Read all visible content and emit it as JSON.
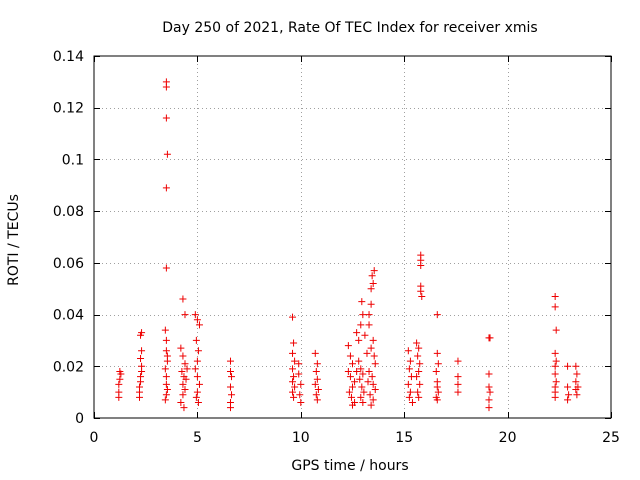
{
  "chart_data": {
    "type": "scatter",
    "title": "Day 250 of 2021, Rate Of TEC Index for receiver xmis",
    "xlabel": "GPS time / hours",
    "ylabel": "ROTI / TECUs",
    "xlim": [
      0,
      25
    ],
    "ylim": [
      0,
      0.14
    ],
    "xticks": [
      0,
      5,
      10,
      15,
      20,
      25
    ],
    "yticks": [
      0,
      0.02,
      0.04,
      0.06,
      0.08,
      0.1,
      0.12,
      0.14
    ],
    "xtick_labels": [
      "0",
      "5",
      "10",
      "15",
      "20",
      "25"
    ],
    "ytick_labels": [
      "0",
      "0.02",
      "0.04",
      "0.06",
      "0.08",
      "0.1",
      "0.12",
      "0.14"
    ],
    "grid": true,
    "marker": "+",
    "color": "#ee0000",
    "series": [
      {
        "points": [
          [
            1.2,
            0.008
          ],
          [
            1.2,
            0.01
          ],
          [
            1.2,
            0.013
          ],
          [
            1.25,
            0.015
          ],
          [
            1.25,
            0.018
          ],
          [
            1.3,
            0.017
          ],
          [
            2.2,
            0.008
          ],
          [
            2.2,
            0.01
          ],
          [
            2.2,
            0.012
          ],
          [
            2.25,
            0.014
          ],
          [
            2.25,
            0.016
          ],
          [
            2.3,
            0.018
          ],
          [
            2.3,
            0.02
          ],
          [
            2.25,
            0.023
          ],
          [
            2.3,
            0.026
          ],
          [
            2.25,
            0.032
          ],
          [
            2.3,
            0.033
          ],
          [
            3.5,
            0.13
          ],
          [
            3.5,
            0.128
          ],
          [
            3.5,
            0.116
          ],
          [
            3.55,
            0.102
          ],
          [
            3.5,
            0.089
          ],
          [
            3.5,
            0.058
          ],
          [
            3.45,
            0.034
          ],
          [
            3.5,
            0.03
          ],
          [
            3.5,
            0.026
          ],
          [
            3.55,
            0.022
          ],
          [
            3.45,
            0.019
          ],
          [
            3.5,
            0.016
          ],
          [
            3.5,
            0.013
          ],
          [
            3.55,
            0.011
          ],
          [
            3.5,
            0.009
          ],
          [
            3.45,
            0.007
          ],
          [
            3.55,
            0.024
          ],
          [
            4.3,
            0.046
          ],
          [
            4.4,
            0.04
          ],
          [
            4.2,
            0.027
          ],
          [
            4.3,
            0.024
          ],
          [
            4.4,
            0.021
          ],
          [
            4.25,
            0.018
          ],
          [
            4.35,
            0.016
          ],
          [
            4.3,
            0.013
          ],
          [
            4.4,
            0.011
          ],
          [
            4.3,
            0.009
          ],
          [
            4.2,
            0.006
          ],
          [
            4.35,
            0.004
          ],
          [
            4.45,
            0.015
          ],
          [
            4.5,
            0.019
          ],
          [
            4.9,
            0.04
          ],
          [
            5.0,
            0.038
          ],
          [
            5.1,
            0.036
          ],
          [
            4.95,
            0.03
          ],
          [
            5.05,
            0.026
          ],
          [
            5.0,
            0.022
          ],
          [
            4.9,
            0.019
          ],
          [
            5.0,
            0.016
          ],
          [
            5.1,
            0.013
          ],
          [
            5.0,
            0.01
          ],
          [
            4.95,
            0.008
          ],
          [
            5.05,
            0.006
          ],
          [
            6.6,
            0.022
          ],
          [
            6.6,
            0.018
          ],
          [
            6.65,
            0.016
          ],
          [
            6.6,
            0.012
          ],
          [
            6.65,
            0.009
          ],
          [
            6.6,
            0.006
          ],
          [
            6.6,
            0.004
          ],
          [
            9.6,
            0.039
          ],
          [
            9.65,
            0.029
          ],
          [
            9.6,
            0.025
          ],
          [
            9.7,
            0.022
          ],
          [
            9.6,
            0.019
          ],
          [
            9.65,
            0.016
          ],
          [
            9.6,
            0.014
          ],
          [
            9.7,
            0.012
          ],
          [
            9.6,
            0.01
          ],
          [
            9.65,
            0.008
          ],
          [
            9.9,
            0.021
          ],
          [
            9.9,
            0.017
          ],
          [
            10.0,
            0.013
          ],
          [
            9.95,
            0.009
          ],
          [
            10.0,
            0.006
          ],
          [
            10.7,
            0.025
          ],
          [
            10.8,
            0.021
          ],
          [
            10.75,
            0.018
          ],
          [
            10.8,
            0.015
          ],
          [
            10.7,
            0.013
          ],
          [
            10.85,
            0.011
          ],
          [
            10.75,
            0.009
          ],
          [
            10.8,
            0.007
          ],
          [
            12.3,
            0.028
          ],
          [
            12.4,
            0.024
          ],
          [
            12.5,
            0.021
          ],
          [
            12.3,
            0.018
          ],
          [
            12.4,
            0.016
          ],
          [
            12.6,
            0.014
          ],
          [
            12.5,
            0.012
          ],
          [
            12.35,
            0.01
          ],
          [
            12.45,
            0.008
          ],
          [
            12.6,
            0.006
          ],
          [
            12.5,
            0.005
          ],
          [
            12.7,
            0.033
          ],
          [
            12.8,
            0.03
          ],
          [
            12.9,
            0.036
          ],
          [
            13.0,
            0.04
          ],
          [
            12.95,
            0.045
          ],
          [
            13.1,
            0.032
          ],
          [
            12.8,
            0.022
          ],
          [
            12.9,
            0.019
          ],
          [
            13.0,
            0.017
          ],
          [
            12.85,
            0.015
          ],
          [
            12.95,
            0.012
          ],
          [
            13.05,
            0.01
          ],
          [
            12.9,
            0.008
          ],
          [
            13.0,
            0.006
          ],
          [
            12.7,
            0.018
          ],
          [
            13.2,
            0.025
          ],
          [
            13.3,
            0.04
          ],
          [
            13.4,
            0.05
          ],
          [
            13.45,
            0.055
          ],
          [
            13.5,
            0.052
          ],
          [
            13.55,
            0.057
          ],
          [
            13.4,
            0.044
          ],
          [
            13.3,
            0.036
          ],
          [
            13.5,
            0.03
          ],
          [
            13.4,
            0.027
          ],
          [
            13.55,
            0.024
          ],
          [
            13.6,
            0.021
          ],
          [
            13.3,
            0.018
          ],
          [
            13.45,
            0.016
          ],
          [
            13.5,
            0.013
          ],
          [
            13.6,
            0.011
          ],
          [
            13.35,
            0.009
          ],
          [
            13.5,
            0.007
          ],
          [
            13.4,
            0.005
          ],
          [
            13.25,
            0.014
          ],
          [
            15.2,
            0.026
          ],
          [
            15.3,
            0.022
          ],
          [
            15.25,
            0.019
          ],
          [
            15.35,
            0.016
          ],
          [
            15.2,
            0.013
          ],
          [
            15.3,
            0.01
          ],
          [
            15.25,
            0.008
          ],
          [
            15.4,
            0.006
          ],
          [
            15.6,
            0.029
          ],
          [
            15.7,
            0.027
          ],
          [
            15.65,
            0.024
          ],
          [
            15.75,
            0.021
          ],
          [
            15.7,
            0.018
          ],
          [
            15.6,
            0.016
          ],
          [
            15.75,
            0.013
          ],
          [
            15.65,
            0.01
          ],
          [
            15.7,
            0.008
          ],
          [
            15.8,
            0.063
          ],
          [
            15.8,
            0.061
          ],
          [
            15.8,
            0.059
          ],
          [
            15.8,
            0.051
          ],
          [
            15.8,
            0.049
          ],
          [
            15.85,
            0.047
          ],
          [
            16.6,
            0.04
          ],
          [
            16.6,
            0.025
          ],
          [
            16.65,
            0.021
          ],
          [
            16.55,
            0.018
          ],
          [
            16.6,
            0.014
          ],
          [
            16.6,
            0.012
          ],
          [
            16.65,
            0.01
          ],
          [
            16.55,
            0.008
          ],
          [
            16.6,
            0.007
          ],
          [
            17.6,
            0.022
          ],
          [
            17.6,
            0.016
          ],
          [
            17.6,
            0.013
          ],
          [
            17.6,
            0.01
          ],
          [
            19.1,
            0.031
          ],
          [
            19.15,
            0.031
          ],
          [
            19.1,
            0.017
          ],
          [
            19.1,
            0.012
          ],
          [
            19.15,
            0.01
          ],
          [
            19.1,
            0.007
          ],
          [
            19.1,
            0.004
          ],
          [
            22.3,
            0.047
          ],
          [
            22.3,
            0.043
          ],
          [
            22.35,
            0.034
          ],
          [
            22.3,
            0.025
          ],
          [
            22.35,
            0.022
          ],
          [
            22.3,
            0.02
          ],
          [
            22.3,
            0.017
          ],
          [
            22.35,
            0.014
          ],
          [
            22.3,
            0.012
          ],
          [
            22.3,
            0.01
          ],
          [
            22.3,
            0.008
          ],
          [
            22.9,
            0.02
          ],
          [
            22.9,
            0.012
          ],
          [
            22.95,
            0.009
          ],
          [
            22.9,
            0.007
          ],
          [
            23.3,
            0.02
          ],
          [
            23.35,
            0.017
          ],
          [
            23.3,
            0.014
          ],
          [
            23.4,
            0.012
          ],
          [
            23.3,
            0.011
          ],
          [
            23.35,
            0.009
          ]
        ]
      }
    ]
  }
}
